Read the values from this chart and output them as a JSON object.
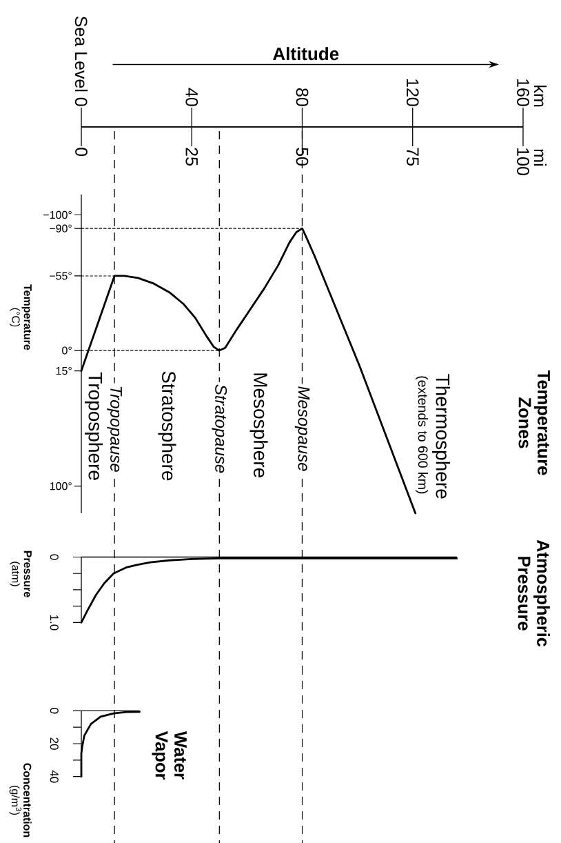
{
  "chart_data": [
    {
      "type": "line",
      "title": "Temperature Zones",
      "xlabel": "Altitude",
      "ylabel": "**Temperature** (°C)",
      "xlim": [
        0,
        160
      ],
      "xticks": [
        {
          "value": 0,
          "label": "Sea Level 0"
        },
        40,
        80,
        120,
        160
      ],
      "x2lim": [
        0,
        100
      ],
      "x2ticks": [
        0,
        25,
        50,
        75,
        100
      ],
      "ylim": [
        120,
        -115
      ],
      "yticks": [
        {
          "value": -100,
          "label": "−100°"
        },
        {
          "value": -90,
          "label": "−90°"
        },
        {
          "value": -55,
          "label": "−55°"
        },
        {
          "value": 0,
          "label": "0°"
        },
        {
          "value": 15,
          "label": "15°"
        },
        {
          "value": 100,
          "label": "100°"
        }
      ],
      "series": [
        {
          "color": "#000000",
          "x": [
            0,
            12,
            15.5,
            20.5,
            26.3,
            32.1,
            37.1,
            41.3,
            45.4,
            47.9,
            50,
            52.1,
            56.3,
            61.3,
            66.3,
            71.3,
            75.4,
            77.9,
            80,
            81.2,
            84.5,
            100.8,
            121
          ],
          "values": [
            15,
            -55,
            -55,
            -53.5,
            -49.3,
            -42.6,
            -34.1,
            -24,
            -10.4,
            -2.8,
            0,
            -2,
            -15.5,
            -30.7,
            -45.9,
            -62.8,
            -79.7,
            -87.3,
            -90,
            -84.8,
            -69.6,
            11.5,
            120
          ]
        },
        {
          "type": "line",
          "line_style": "dotted",
          "color": "#000000",
          "x": [
            0,
            12
          ],
          "values": [
            -55,
            -55
          ]
        },
        {
          "type": "line",
          "line_style": "dotted",
          "color": "#000000",
          "x": [
            0,
            50
          ],
          "values": [
            0,
            0
          ]
        },
        {
          "type": "line",
          "line_style": "dotted",
          "color": "#000000",
          "x": [
            0,
            80
          ],
          "values": [
            -90,
            -90
          ]
        }
      ],
      "ref_lines": [
        {
          "axis": "x",
          "value": 12,
          "label": "Tropopause",
          "line_style": "dashed"
        },
        {
          "axis": "x",
          "value": 50,
          "label": "Stratopause",
          "line_style": "dashed"
        },
        {
          "axis": "x",
          "value": 80,
          "label": "Mesopause",
          "line_style": "dashed"
        }
      ],
      "annotations": [
        "km",
        "mi",
        "Troposphere",
        "Stratosphere",
        "Mesosphere",
        "Thermosphere",
        "(extends to 600 km)"
      ]
    },
    {
      "type": "line",
      "title": "Atmospheric Pressure",
      "ylabel": "**Pressure** (atm)",
      "tick_labels": "y",
      "xlim": [
        0,
        160
      ],
      "ylim": [
        1.0,
        0
      ],
      "yticks": [
        0,
        {
          "value": 0.25,
          "label": null
        },
        {
          "value": 0.5,
          "label": null
        },
        {
          "value": 0.75,
          "label": null
        },
        {
          "value": 1.0,
          "label": "1.0"
        }
      ],
      "series": [
        {
          "color": "#000000",
          "x": [
            0,
            2.3,
            5.3,
            8.3,
            11.7,
            16.2,
            20.1,
            25,
            32,
            40,
            50,
            136
          ],
          "values": [
            1.0,
            0.81,
            0.58,
            0.4,
            0.25,
            0.16,
            0.12,
            0.08,
            0.05,
            0.03,
            0.02,
            0.02
          ]
        }
      ],
      "ref_lines": [
        {
          "axis": "x",
          "value": 12,
          "line_style": "dashed"
        },
        {
          "axis": "x",
          "value": 50,
          "line_style": "dashed"
        },
        {
          "axis": "x",
          "value": 80,
          "line_style": "dashed"
        }
      ]
    },
    {
      "type": "line",
      "title": "Water Vapor",
      "ylabel": "**Concentration** (g/m$^{3}$)",
      "tick_labels": "y",
      "xlim": [
        0,
        160
      ],
      "ylim": [
        40,
        0
      ],
      "yticks": [
        0,
        {
          "value": 10,
          "label": null
        },
        20,
        {
          "value": 30,
          "label": null
        },
        40
      ],
      "series": [
        {
          "color": "#000000",
          "x": [
            0,
            0,
            0.3,
            1.1,
            3.5,
            7,
            11.7,
            16.4,
            21.1
          ],
          "values": [
            40,
            26,
            22,
            15,
            8,
            3.6,
            1.6,
            0.8,
            0.6
          ]
        }
      ],
      "ref_lines": [
        {
          "axis": "x",
          "value": 12,
          "line_style": "dashed"
        },
        {
          "axis": "x",
          "value": 50,
          "line_style": "dashed"
        },
        {
          "axis": "x",
          "value": 80,
          "line_style": "dashed"
        }
      ]
    }
  ]
}
